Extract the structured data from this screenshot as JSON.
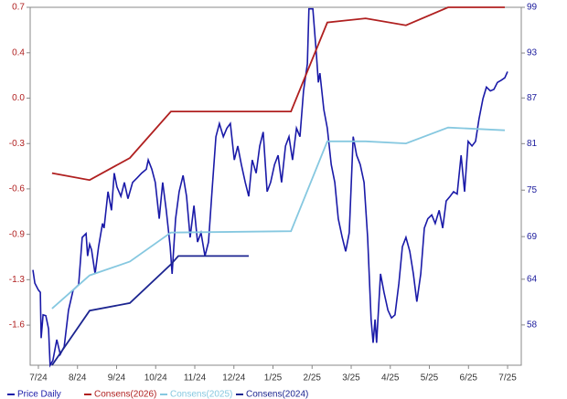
{
  "chart_data": {
    "type": "line",
    "xlim": [
      -0.21,
      12.35
    ],
    "xticks": [
      {
        "value": 0,
        "label": "7/24"
      },
      {
        "value": 1,
        "label": "8/24"
      },
      {
        "value": 2,
        "label": "9/24"
      },
      {
        "value": 3,
        "label": "10/24"
      },
      {
        "value": 4,
        "label": "11/24"
      },
      {
        "value": 5,
        "label": "12/24"
      },
      {
        "value": 6,
        "label": "1/25"
      },
      {
        "value": 7,
        "label": "2/25"
      },
      {
        "value": 8,
        "label": "3/25"
      },
      {
        "value": 9,
        "label": "4/25"
      },
      {
        "value": 10,
        "label": "5/25"
      },
      {
        "value": 11,
        "label": "6/25"
      },
      {
        "value": 12,
        "label": "7/25"
      }
    ],
    "ylim": [
      -1.89,
      0.7
    ],
    "yticks": [
      0.7,
      {
        "value": 0.371,
        "label": "0.4"
      },
      {
        "value": 0.043,
        "label": "0.0"
      },
      {
        "value": -0.286,
        "label": "-0.3"
      },
      {
        "value": -0.614,
        "label": "-0.6"
      },
      {
        "value": -0.943,
        "label": "-0.9"
      },
      {
        "value": -1.271,
        "label": "-1.3"
      },
      -1.6
    ],
    "y2lim": [
      52.8,
      99
    ],
    "y2ticks": [
      99,
      {
        "value": 93.1,
        "label": "93"
      },
      {
        "value": 87.3,
        "label": "87"
      },
      {
        "value": 81.4,
        "label": "81"
      },
      {
        "value": 75.4,
        "label": "75"
      },
      {
        "value": 69.4,
        "label": "69"
      },
      {
        "value": 63.9,
        "label": "64"
      },
      58
    ],
    "ycolor": "#b02020",
    "y2color": "#1a1a9c",
    "series": [
      {
        "name": "Price Daily",
        "color": "#1a1aa8",
        "axis": "y2",
        "x": [
          -0.14,
          -0.09,
          0,
          0.05,
          0.07,
          0.12,
          0.19,
          0.26,
          0.3,
          0.37,
          0.47,
          0.56,
          0.66,
          0.77,
          0.89,
          1.03,
          1.12,
          1.22,
          1.26,
          1.31,
          1.36,
          1.45,
          1.54,
          1.64,
          1.68,
          1.78,
          1.87,
          1.94,
          2.01,
          2.11,
          2.2,
          2.29,
          2.41,
          2.53,
          2.64,
          2.76,
          2.81,
          2.9,
          2.99,
          3.09,
          3.18,
          3.27,
          3.37,
          3.42,
          3.51,
          3.6,
          3.7,
          3.79,
          3.88,
          3.98,
          4.07,
          4.16,
          4.26,
          4.35,
          4.44,
          4.54,
          4.63,
          4.73,
          4.82,
          4.91,
          5.01,
          5.1,
          5.19,
          5.29,
          5.38,
          5.47,
          5.57,
          5.66,
          5.75,
          5.85,
          5.94,
          6.04,
          6.13,
          6.22,
          6.32,
          6.41,
          6.5,
          6.6,
          6.69,
          6.78,
          6.88,
          6.92,
          7.02,
          7.11,
          7.16,
          7.2,
          7.3,
          7.39,
          7.49,
          7.58,
          7.67,
          7.77,
          7.86,
          7.95,
          8.05,
          8.14,
          8.23,
          8.33,
          8.42,
          8.51,
          8.56,
          8.61,
          8.65,
          8.75,
          8.84,
          8.94,
          9.03,
          9.12,
          9.22,
          9.31,
          9.4,
          9.5,
          9.59,
          9.68,
          9.78,
          9.87,
          9.96,
          10.06,
          10.15,
          10.25,
          10.34,
          10.43,
          10.53,
          10.62,
          10.71,
          10.81,
          10.9,
          10.99,
          11.09,
          11.18,
          11.27,
          11.37,
          11.46,
          11.56,
          11.65,
          11.74,
          11.84,
          11.93,
          12.0
        ],
        "values": [
          65.1,
          63.4,
          62.5,
          62.2,
          56.3,
          59.3,
          59.2,
          57.5,
          52.8,
          53.4,
          56.1,
          54.2,
          55.2,
          59.9,
          62.5,
          63.2,
          69.3,
          69.8,
          66.9,
          68.4,
          67.7,
          64.6,
          68.1,
          71.1,
          70.5,
          75.2,
          72.8,
          77.6,
          75.8,
          74.6,
          76.4,
          74.3,
          76.4,
          77.0,
          77.6,
          78.1,
          79.3,
          78.1,
          76.4,
          71.7,
          76.4,
          72.8,
          68.1,
          64.6,
          71.7,
          75.2,
          77.3,
          74.6,
          69.3,
          73.4,
          68.7,
          69.9,
          66.9,
          68.7,
          75.2,
          82.3,
          84.0,
          82.3,
          83.4,
          84.0,
          79.3,
          81.1,
          78.7,
          76.4,
          74.6,
          79.3,
          77.6,
          81.1,
          82.9,
          75.2,
          76.4,
          78.7,
          79.9,
          76.4,
          81.1,
          82.3,
          79.3,
          83.4,
          82.3,
          88.2,
          91.7,
          98.8,
          98.8,
          92.9,
          89.3,
          90.5,
          85.8,
          83.4,
          78.7,
          76.4,
          71.7,
          69.3,
          67.5,
          69.9,
          82.3,
          79.9,
          78.7,
          76.4,
          69.3,
          58.7,
          55.7,
          58.7,
          55.7,
          64.6,
          62.2,
          59.9,
          58.9,
          59.3,
          63.4,
          68.1,
          69.3,
          67.5,
          64.6,
          61.0,
          64.6,
          70.5,
          71.7,
          72.2,
          71.1,
          72.8,
          70.5,
          74.0,
          74.6,
          75.2,
          74.9,
          79.9,
          75.2,
          81.7,
          81.1,
          81.7,
          84.6,
          87.2,
          88.7,
          88.2,
          88.4,
          89.3,
          89.6,
          89.9,
          90.7
        ]
      },
      {
        "name": "Consens(2026)",
        "color": "#b02020",
        "x": [
          0.35,
          1.31,
          2.34,
          3.39,
          6.46,
          7.39,
          8.37,
          9.4,
          10.48,
          11.93
        ],
        "values": [
          -0.5,
          -0.55,
          -0.39,
          -0.054,
          -0.054,
          0.59,
          0.62,
          0.57,
          0.7,
          0.7
        ]
      },
      {
        "name": "Consens(2025)",
        "color": "#86c8e0",
        "x": [
          0.35,
          1.31,
          2.34,
          3.39,
          6.46,
          7.39,
          8.37,
          9.4,
          10.48,
          11.93
        ],
        "values": [
          -1.48,
          -1.24,
          -1.14,
          -0.93,
          -0.92,
          -0.27,
          -0.27,
          -0.285,
          -0.17,
          -0.19
        ]
      },
      {
        "name": "Consens(2024)",
        "color": "#1c2590",
        "x": [
          0.35,
          1.31,
          2.34,
          3.39,
          3.58,
          5.38
        ],
        "values": [
          -1.89,
          -1.495,
          -1.44,
          -1.16,
          -1.1,
          -1.1
        ]
      }
    ]
  }
}
